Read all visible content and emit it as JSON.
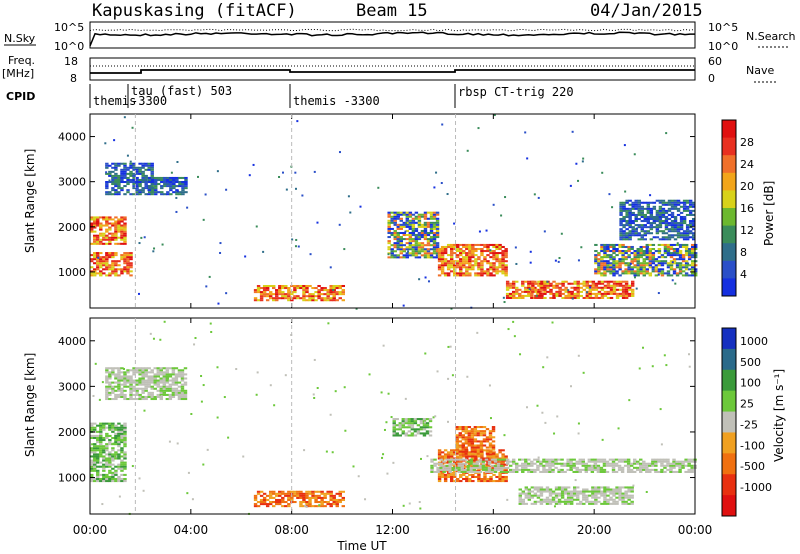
{
  "header": {
    "station": "Kapuskasing (fitACF)",
    "beam": "Beam 15",
    "date": "04/Jan/2015"
  },
  "top_panels": {
    "nsky_label": "N.Sky",
    "nsky_ticks": [
      "10^5",
      "10^0"
    ],
    "nsearch_label": "N.Search",
    "nsearch_ticks": [
      "10^5",
      "10^0"
    ],
    "freq_label": "Freq.",
    "freq_unit": "[MHz]",
    "freq_ticks": [
      "18",
      "8"
    ],
    "nave_label": "Nave",
    "nave_ticks": [
      "60",
      "0"
    ],
    "cpid_label": "CPID",
    "cpid_segments": [
      {
        "start_hr": 0.0,
        "label": "themis"
      },
      {
        "start_hr": 1.8,
        "label": "tau (fast) 503",
        "sub": "-3300"
      },
      {
        "start_hr": 8.0,
        "label": "themis -3300"
      },
      {
        "start_hr": 14.5,
        "label": "rbsp CT-trig 220"
      }
    ]
  },
  "chart_data": [
    {
      "type": "heatmap",
      "name": "power-panel",
      "ylabel": "Slant Range [km]",
      "yticks": [
        "1000",
        "2000",
        "3000",
        "4000"
      ],
      "ylim": [
        200,
        4500
      ],
      "xlim": [
        0,
        24
      ],
      "colorbar": {
        "label": "Power [dB]",
        "ticks": [
          "4",
          "8",
          "12",
          "16",
          "20",
          "24",
          "28"
        ],
        "colors": [
          "#1530e0",
          "#2a4fc8",
          "#2f6e8a",
          "#3a8c5a",
          "#6cb82f",
          "#d8d21a",
          "#f2a51a",
          "#f0702a",
          "#e83020",
          "#e01010"
        ]
      },
      "regions": [
        {
          "t0": 0.6,
          "t1": 2.5,
          "r0": 2700,
          "r1": 3400,
          "level": "weak"
        },
        {
          "t0": 2.3,
          "t1": 3.8,
          "r0": 2700,
          "r1": 3100,
          "level": "weak"
        },
        {
          "t0": 0.0,
          "t1": 1.4,
          "r0": 1600,
          "r1": 2200,
          "level": "strong"
        },
        {
          "t0": 0.0,
          "t1": 1.6,
          "r0": 900,
          "r1": 1400,
          "level": "strong"
        },
        {
          "t0": 6.5,
          "t1": 10.0,
          "r0": 350,
          "r1": 700,
          "level": "strong"
        },
        {
          "t0": 11.8,
          "t1": 13.8,
          "r0": 1300,
          "r1": 2300,
          "level": "mixed"
        },
        {
          "t0": 13.8,
          "t1": 16.5,
          "r0": 900,
          "r1": 1600,
          "level": "strong"
        },
        {
          "t0": 16.5,
          "t1": 18.0,
          "r0": 400,
          "r1": 800,
          "level": "strong"
        },
        {
          "t0": 17.5,
          "t1": 21.5,
          "r0": 400,
          "r1": 800,
          "level": "strong"
        },
        {
          "t0": 20.0,
          "t1": 24.0,
          "r0": 900,
          "r1": 1600,
          "level": "mixed"
        },
        {
          "t0": 21.0,
          "t1": 24.0,
          "r0": 1700,
          "r1": 2600,
          "level": "weak"
        }
      ]
    },
    {
      "type": "heatmap",
      "name": "velocity-panel",
      "ylabel": "Slant Range [km]",
      "yticks": [
        "1000",
        "2000",
        "3000",
        "4000"
      ],
      "ylim": [
        200,
        4500
      ],
      "xlim": [
        0,
        24
      ],
      "xticks": [
        "00:00",
        "04:00",
        "08:00",
        "12:00",
        "16:00",
        "20:00",
        "00:00"
      ],
      "xlabel": "Time UT",
      "colorbar": {
        "label": "Velocity [m s⁻¹]",
        "ticks": [
          "1000",
          "500",
          "100",
          "25",
          "-25",
          "-100",
          "-500",
          "-1000"
        ],
        "colors": [
          "#1530c0",
          "#2a6a8a",
          "#3a9a3a",
          "#6cc83a",
          "#c0c0b8",
          "#f0a020",
          "#f07010",
          "#e83010",
          "#e01010"
        ]
      },
      "regions": [
        {
          "t0": 0.0,
          "t1": 1.4,
          "r0": 900,
          "r1": 2200,
          "level": "green"
        },
        {
          "t0": 0.6,
          "t1": 3.8,
          "r0": 2700,
          "r1": 3400,
          "level": "grey"
        },
        {
          "t0": 6.5,
          "t1": 10.0,
          "r0": 350,
          "r1": 700,
          "level": "orange"
        },
        {
          "t0": 13.8,
          "t1": 16.5,
          "r0": 900,
          "r1": 1600,
          "level": "orange"
        },
        {
          "t0": 13.5,
          "t1": 24.0,
          "r0": 1100,
          "r1": 1400,
          "level": "grey"
        },
        {
          "t0": 17.0,
          "t1": 21.5,
          "r0": 400,
          "r1": 800,
          "level": "grey"
        },
        {
          "t0": 12.0,
          "t1": 13.5,
          "r0": 1900,
          "r1": 2300,
          "level": "green"
        },
        {
          "t0": 14.5,
          "t1": 16.0,
          "r0": 1500,
          "r1": 2100,
          "level": "orange"
        }
      ]
    }
  ]
}
